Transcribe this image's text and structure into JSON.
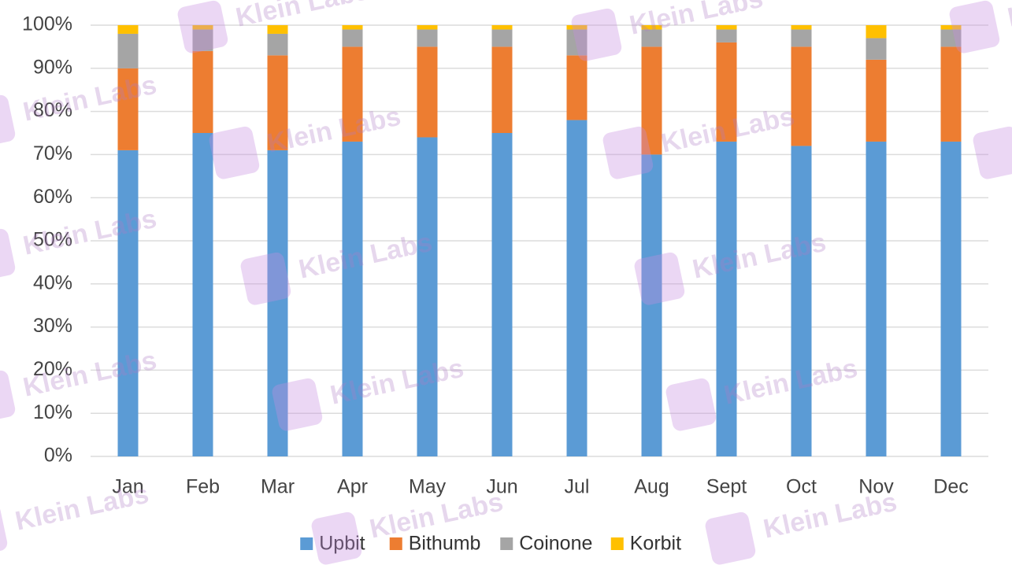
{
  "chart_data": {
    "type": "stacked_bar",
    "categories": [
      "Jan",
      "Feb",
      "Mar",
      "Apr",
      "May",
      "Jun",
      "Jul",
      "Aug",
      "Sept",
      "Oct",
      "Nov",
      "Dec"
    ],
    "series": [
      {
        "name": "Upbit",
        "color": "#5b9bd5",
        "values": [
          71,
          75,
          71,
          73,
          74,
          75,
          78,
          70,
          73,
          72,
          73,
          73
        ]
      },
      {
        "name": "Bithumb",
        "color": "#ed7d31",
        "values": [
          19,
          19,
          22,
          22,
          21,
          20,
          15,
          25,
          23,
          23,
          19,
          22
        ]
      },
      {
        "name": "Coinone",
        "color": "#a5a5a5",
        "values": [
          8,
          5,
          5,
          4,
          4,
          4,
          6,
          4,
          3,
          4,
          5,
          4
        ]
      },
      {
        "name": "Korbit",
        "color": "#ffc000",
        "values": [
          2,
          1,
          2,
          1,
          1,
          1,
          1,
          1,
          1,
          1,
          3,
          1
        ]
      }
    ],
    "ylim": [
      0,
      100
    ],
    "yticks": [
      {
        "value": 0,
        "label": "0%"
      },
      {
        "value": 10,
        "label": "10%"
      },
      {
        "value": 20,
        "label": "20%"
      },
      {
        "value": 30,
        "label": "30%"
      },
      {
        "value": 40,
        "label": "40%"
      },
      {
        "value": 50,
        "label": "50%"
      },
      {
        "value": 60,
        "label": "60%"
      },
      {
        "value": 70,
        "label": "70%"
      },
      {
        "value": 80,
        "label": "80%"
      },
      {
        "value": 90,
        "label": "90%"
      },
      {
        "value": 100,
        "label": "100%"
      }
    ],
    "grid": true,
    "legend": "bottom"
  },
  "watermark": "Klein Labs"
}
